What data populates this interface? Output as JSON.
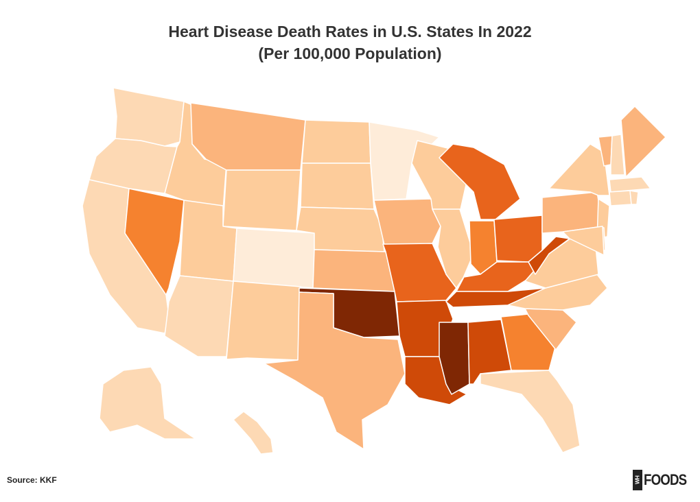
{
  "title": {
    "line1": "Heart Disease Death Rates in U.S. States In 2022",
    "line2": "(Per 100,000 Population)"
  },
  "source": "Source: KKF",
  "logo": {
    "mark": "WH",
    "text": "FOODS"
  },
  "colors": {
    "level1": "#feecd9",
    "level2": "#fdd9b4",
    "level3": "#fdcc9b",
    "level4": "#fbb47c",
    "level5": "#f5822f",
    "level6": "#e8641c",
    "level7": "#cf4a08",
    "level8": "#7f2704",
    "border": "#ffffff"
  },
  "states": {
    "WA": 2,
    "OR": 2,
    "CA": 2,
    "NV": 5,
    "ID": 3,
    "MT": 4,
    "WY": 3,
    "UT": 3,
    "CO": 1,
    "AZ": 2,
    "NM": 3,
    "ND": 3,
    "SD": 3,
    "NE": 3,
    "KS": 4,
    "OK": 8,
    "TX": 4,
    "MN": 1,
    "IA": 4,
    "MO": 6,
    "AR": 7,
    "LA": 7,
    "WI": 3,
    "IL": 3,
    "MI": 6,
    "IN": 5,
    "OH": 6,
    "KY": 6,
    "TN": 7,
    "MS": 8,
    "AL": 7,
    "GA": 5,
    "FL": 2,
    "SC": 4,
    "NC": 3,
    "VA": 3,
    "WV": 7,
    "PA": 4,
    "NY": 3,
    "VT": 4,
    "NH": 2,
    "ME": 4,
    "MA": 2,
    "CT": 2,
    "RI": 2,
    "NJ": 3,
    "DE": 3,
    "MD": 3,
    "AK": 2,
    "HI": 2
  }
}
